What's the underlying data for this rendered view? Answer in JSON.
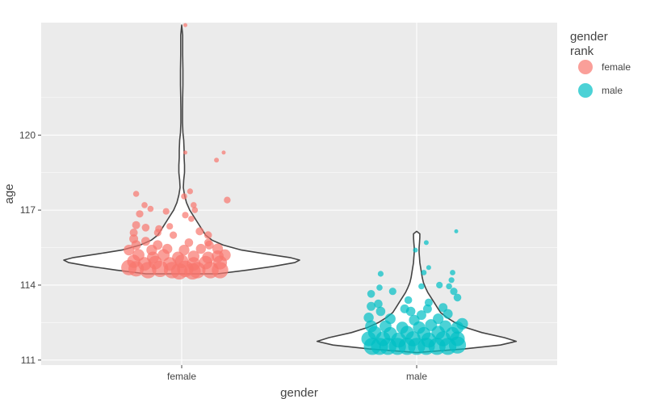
{
  "chart_data": {
    "type": "scatter",
    "subtype": "violin-with-jittered-points",
    "xlabel": "gender",
    "ylabel": "age",
    "categories": [
      "female",
      "male"
    ],
    "ylim": [
      110.8,
      124.5
    ],
    "y_ticks": [
      111,
      114,
      117,
      120
    ],
    "grid": true,
    "legend": {
      "position": "right",
      "title_lines": [
        "gender",
        "rank"
      ],
      "entries": [
        {
          "label": "female",
          "color": "#F8766D"
        },
        {
          "label": "male",
          "color": "#00BFC4"
        }
      ]
    },
    "colors": {
      "female": "#F8766D",
      "male": "#00BFC4",
      "panel": "#EBEBEB",
      "grid": "#FFFFFF",
      "violin_fill": "#FFFFFF",
      "violin_stroke": "#444444"
    },
    "violins": [
      {
        "name": "female",
        "profile": [
          [
            114.45,
            0.45
          ],
          [
            114.6,
            0.82
          ],
          [
            114.75,
            1.15
          ],
          [
            114.9,
            1.42
          ],
          [
            115.0,
            1.48
          ],
          [
            115.1,
            1.36
          ],
          [
            115.25,
            1.05
          ],
          [
            115.4,
            0.75
          ],
          [
            115.6,
            0.52
          ],
          [
            115.8,
            0.38
          ],
          [
            116.0,
            0.3
          ],
          [
            116.3,
            0.24
          ],
          [
            116.6,
            0.18
          ],
          [
            117.0,
            0.1
          ],
          [
            117.3,
            0.06
          ],
          [
            117.6,
            0.035
          ],
          [
            117.9,
            0.02
          ],
          [
            118.2,
            0.025
          ],
          [
            118.5,
            0.035
          ],
          [
            118.8,
            0.035
          ],
          [
            119.1,
            0.03
          ],
          [
            119.4,
            0.03
          ],
          [
            119.8,
            0.025
          ],
          [
            120.1,
            0.015
          ],
          [
            120.5,
            0.01
          ],
          [
            121.0,
            0.01
          ],
          [
            121.5,
            0.012
          ],
          [
            122.0,
            0.015
          ],
          [
            122.6,
            0.015
          ],
          [
            123.2,
            0.012
          ],
          [
            124.0,
            0.012
          ],
          [
            124.4,
            0.0
          ]
        ]
      },
      {
        "name": "male",
        "profile": [
          [
            111.3,
            0.0
          ],
          [
            111.45,
            0.6
          ],
          [
            111.6,
            1.05
          ],
          [
            111.75,
            1.25
          ],
          [
            111.9,
            1.1
          ],
          [
            112.1,
            0.82
          ],
          [
            112.3,
            0.62
          ],
          [
            112.5,
            0.48
          ],
          [
            112.7,
            0.38
          ],
          [
            112.9,
            0.3
          ],
          [
            113.1,
            0.26
          ],
          [
            113.3,
            0.22
          ],
          [
            113.5,
            0.18
          ],
          [
            113.7,
            0.14
          ],
          [
            113.9,
            0.11
          ],
          [
            114.1,
            0.085
          ],
          [
            114.3,
            0.07
          ],
          [
            114.5,
            0.06
          ],
          [
            114.7,
            0.05
          ],
          [
            114.9,
            0.04
          ],
          [
            115.1,
            0.035
          ],
          [
            115.3,
            0.03
          ],
          [
            115.5,
            0.03
          ],
          [
            115.7,
            0.035
          ],
          [
            115.9,
            0.04
          ],
          [
            116.05,
            0.04
          ],
          [
            116.15,
            0.0
          ]
        ]
      }
    ],
    "series": [
      {
        "name": "female",
        "points": [
          {
            "x": 0.03,
            "y": 124.4,
            "size": 0.12
          },
          {
            "x": 0.03,
            "y": 119.3,
            "size": 0.2
          },
          {
            "x": 0.35,
            "y": 119.3,
            "size": 0.2
          },
          {
            "x": 0.29,
            "y": 119.0,
            "size": 0.25
          },
          {
            "x": -0.38,
            "y": 117.65,
            "size": 0.32
          },
          {
            "x": 0.07,
            "y": 117.75,
            "size": 0.3
          },
          {
            "x": 0.02,
            "y": 117.55,
            "size": 0.32
          },
          {
            "x": 0.38,
            "y": 117.4,
            "size": 0.35
          },
          {
            "x": -0.31,
            "y": 117.2,
            "size": 0.32
          },
          {
            "x": -0.26,
            "y": 117.05,
            "size": 0.32
          },
          {
            "x": 0.1,
            "y": 117.2,
            "size": 0.32
          },
          {
            "x": 0.11,
            "y": 117.0,
            "size": 0.32
          },
          {
            "x": -0.13,
            "y": 116.95,
            "size": 0.34
          },
          {
            "x": 0.03,
            "y": 116.8,
            "size": 0.34
          },
          {
            "x": -0.35,
            "y": 116.85,
            "size": 0.38
          },
          {
            "x": 0.08,
            "y": 116.65,
            "size": 0.32
          },
          {
            "x": -0.38,
            "y": 116.4,
            "size": 0.42
          },
          {
            "x": -0.3,
            "y": 116.3,
            "size": 0.4
          },
          {
            "x": -0.1,
            "y": 116.35,
            "size": 0.34
          },
          {
            "x": -0.2,
            "y": 116.1,
            "size": 0.38
          },
          {
            "x": -0.19,
            "y": 116.25,
            "size": 0.38
          },
          {
            "x": -0.4,
            "y": 116.1,
            "size": 0.42
          },
          {
            "x": -0.07,
            "y": 116.0,
            "size": 0.38
          },
          {
            "x": 0.15,
            "y": 116.15,
            "size": 0.42
          },
          {
            "x": 0.22,
            "y": 116.0,
            "size": 0.4
          },
          {
            "x": 0.22,
            "y": 115.7,
            "size": 0.4
          },
          {
            "x": -0.4,
            "y": 115.85,
            "size": 0.46
          },
          {
            "x": -0.38,
            "y": 115.6,
            "size": 0.5
          },
          {
            "x": -0.3,
            "y": 115.75,
            "size": 0.46
          },
          {
            "x": -0.2,
            "y": 115.6,
            "size": 0.5
          },
          {
            "x": 0.06,
            "y": 115.7,
            "size": 0.44
          },
          {
            "x": 0.23,
            "y": 115.6,
            "size": 0.46
          },
          {
            "x": -0.44,
            "y": 115.4,
            "size": 0.55
          },
          {
            "x": -0.25,
            "y": 115.4,
            "size": 0.55
          },
          {
            "x": -0.12,
            "y": 115.45,
            "size": 0.52
          },
          {
            "x": 0.02,
            "y": 115.4,
            "size": 0.55
          },
          {
            "x": 0.16,
            "y": 115.45,
            "size": 0.52
          },
          {
            "x": 0.3,
            "y": 115.45,
            "size": 0.55
          },
          {
            "x": 0.36,
            "y": 115.2,
            "size": 0.6
          },
          {
            "x": -0.36,
            "y": 115.2,
            "size": 0.62
          },
          {
            "x": -0.24,
            "y": 115.1,
            "size": 0.62
          },
          {
            "x": -0.15,
            "y": 115.2,
            "size": 0.62
          },
          {
            "x": -0.03,
            "y": 115.1,
            "size": 0.62
          },
          {
            "x": 0.1,
            "y": 115.15,
            "size": 0.6
          },
          {
            "x": 0.22,
            "y": 115.1,
            "size": 0.62
          },
          {
            "x": 0.3,
            "y": 115.15,
            "size": 0.62
          },
          {
            "x": -0.4,
            "y": 114.95,
            "size": 0.68
          },
          {
            "x": -0.31,
            "y": 114.85,
            "size": 0.7
          },
          {
            "x": -0.22,
            "y": 114.9,
            "size": 0.7
          },
          {
            "x": -0.1,
            "y": 114.85,
            "size": 0.7
          },
          {
            "x": 0.0,
            "y": 114.95,
            "size": 0.7
          },
          {
            "x": 0.1,
            "y": 114.85,
            "size": 0.7
          },
          {
            "x": 0.2,
            "y": 114.9,
            "size": 0.7
          },
          {
            "x": 0.32,
            "y": 114.9,
            "size": 0.72
          },
          {
            "x": -0.38,
            "y": 114.65,
            "size": 0.8
          },
          {
            "x": -0.28,
            "y": 114.6,
            "size": 0.85
          },
          {
            "x": -0.18,
            "y": 114.65,
            "size": 0.85
          },
          {
            "x": -0.08,
            "y": 114.6,
            "size": 0.85
          },
          {
            "x": 0.03,
            "y": 114.65,
            "size": 0.85
          },
          {
            "x": 0.13,
            "y": 114.6,
            "size": 0.85
          },
          {
            "x": 0.24,
            "y": 114.6,
            "size": 0.85
          },
          {
            "x": 0.32,
            "y": 114.6,
            "size": 0.85
          },
          {
            "x": -0.44,
            "y": 114.7,
            "size": 0.8
          },
          {
            "x": -0.02,
            "y": 114.55,
            "size": 0.85
          },
          {
            "x": 0.09,
            "y": 114.55,
            "size": 0.85
          }
        ]
      },
      {
        "name": "male",
        "points": [
          {
            "x": 0.33,
            "y": 116.15,
            "size": 0.12
          },
          {
            "x": -0.01,
            "y": 115.4,
            "size": 0.25
          },
          {
            "x": 0.08,
            "y": 115.7,
            "size": 0.25
          },
          {
            "x": 0.1,
            "y": 114.7,
            "size": 0.25
          },
          {
            "x": 0.06,
            "y": 114.5,
            "size": 0.28
          },
          {
            "x": 0.3,
            "y": 114.5,
            "size": 0.28
          },
          {
            "x": -0.3,
            "y": 114.45,
            "size": 0.3
          },
          {
            "x": 0.29,
            "y": 114.2,
            "size": 0.3
          },
          {
            "x": 0.04,
            "y": 113.95,
            "size": 0.32
          },
          {
            "x": -0.31,
            "y": 113.9,
            "size": 0.32
          },
          {
            "x": 0.19,
            "y": 114.0,
            "size": 0.34
          },
          {
            "x": 0.27,
            "y": 113.95,
            "size": 0.32
          },
          {
            "x": -0.2,
            "y": 113.75,
            "size": 0.38
          },
          {
            "x": -0.38,
            "y": 113.65,
            "size": 0.4
          },
          {
            "x": 0.31,
            "y": 113.75,
            "size": 0.38
          },
          {
            "x": 0.34,
            "y": 113.5,
            "size": 0.4
          },
          {
            "x": -0.07,
            "y": 113.4,
            "size": 0.4
          },
          {
            "x": 0.1,
            "y": 113.3,
            "size": 0.42
          },
          {
            "x": -0.32,
            "y": 113.25,
            "size": 0.44
          },
          {
            "x": -0.38,
            "y": 113.15,
            "size": 0.46
          },
          {
            "x": -0.1,
            "y": 113.05,
            "size": 0.46
          },
          {
            "x": 0.09,
            "y": 113.05,
            "size": 0.46
          },
          {
            "x": 0.22,
            "y": 113.1,
            "size": 0.46
          },
          {
            "x": -0.3,
            "y": 112.95,
            "size": 0.48
          },
          {
            "x": -0.05,
            "y": 112.95,
            "size": 0.48
          },
          {
            "x": 0.04,
            "y": 112.8,
            "size": 0.5
          },
          {
            "x": 0.26,
            "y": 112.85,
            "size": 0.5
          },
          {
            "x": -0.4,
            "y": 112.7,
            "size": 0.52
          },
          {
            "x": -0.22,
            "y": 112.65,
            "size": 0.55
          },
          {
            "x": -0.02,
            "y": 112.6,
            "size": 0.55
          },
          {
            "x": 0.18,
            "y": 112.65,
            "size": 0.55
          },
          {
            "x": 0.38,
            "y": 112.45,
            "size": 0.6
          },
          {
            "x": -0.38,
            "y": 112.35,
            "size": 0.62
          },
          {
            "x": -0.26,
            "y": 112.35,
            "size": 0.62
          },
          {
            "x": -0.12,
            "y": 112.3,
            "size": 0.62
          },
          {
            "x": 0.02,
            "y": 112.3,
            "size": 0.64
          },
          {
            "x": 0.12,
            "y": 112.4,
            "size": 0.62
          },
          {
            "x": 0.24,
            "y": 112.35,
            "size": 0.62
          },
          {
            "x": 0.34,
            "y": 112.3,
            "size": 0.64
          },
          {
            "x": -0.35,
            "y": 112.1,
            "size": 0.68
          },
          {
            "x": -0.22,
            "y": 112.05,
            "size": 0.7
          },
          {
            "x": -0.08,
            "y": 112.1,
            "size": 0.7
          },
          {
            "x": 0.06,
            "y": 112.05,
            "size": 0.7
          },
          {
            "x": 0.18,
            "y": 112.1,
            "size": 0.7
          },
          {
            "x": 0.3,
            "y": 112.05,
            "size": 0.7
          },
          {
            "x": -0.4,
            "y": 111.85,
            "size": 0.76
          },
          {
            "x": -0.28,
            "y": 111.85,
            "size": 0.76
          },
          {
            "x": -0.15,
            "y": 111.8,
            "size": 0.78
          },
          {
            "x": -0.03,
            "y": 111.85,
            "size": 0.78
          },
          {
            "x": 0.1,
            "y": 111.8,
            "size": 0.78
          },
          {
            "x": 0.22,
            "y": 111.85,
            "size": 0.78
          },
          {
            "x": 0.34,
            "y": 111.85,
            "size": 0.76
          },
          {
            "x": -0.37,
            "y": 111.55,
            "size": 0.88
          },
          {
            "x": -0.31,
            "y": 111.55,
            "size": 0.88
          },
          {
            "x": -0.24,
            "y": 111.55,
            "size": 0.88
          },
          {
            "x": -0.16,
            "y": 111.55,
            "size": 0.88
          },
          {
            "x": -0.08,
            "y": 111.55,
            "size": 0.88
          },
          {
            "x": 0.0,
            "y": 111.55,
            "size": 0.88
          },
          {
            "x": 0.08,
            "y": 111.55,
            "size": 0.88
          },
          {
            "x": 0.17,
            "y": 111.55,
            "size": 0.88
          },
          {
            "x": 0.26,
            "y": 111.55,
            "size": 0.88
          },
          {
            "x": 0.34,
            "y": 111.6,
            "size": 0.88
          }
        ]
      }
    ]
  }
}
